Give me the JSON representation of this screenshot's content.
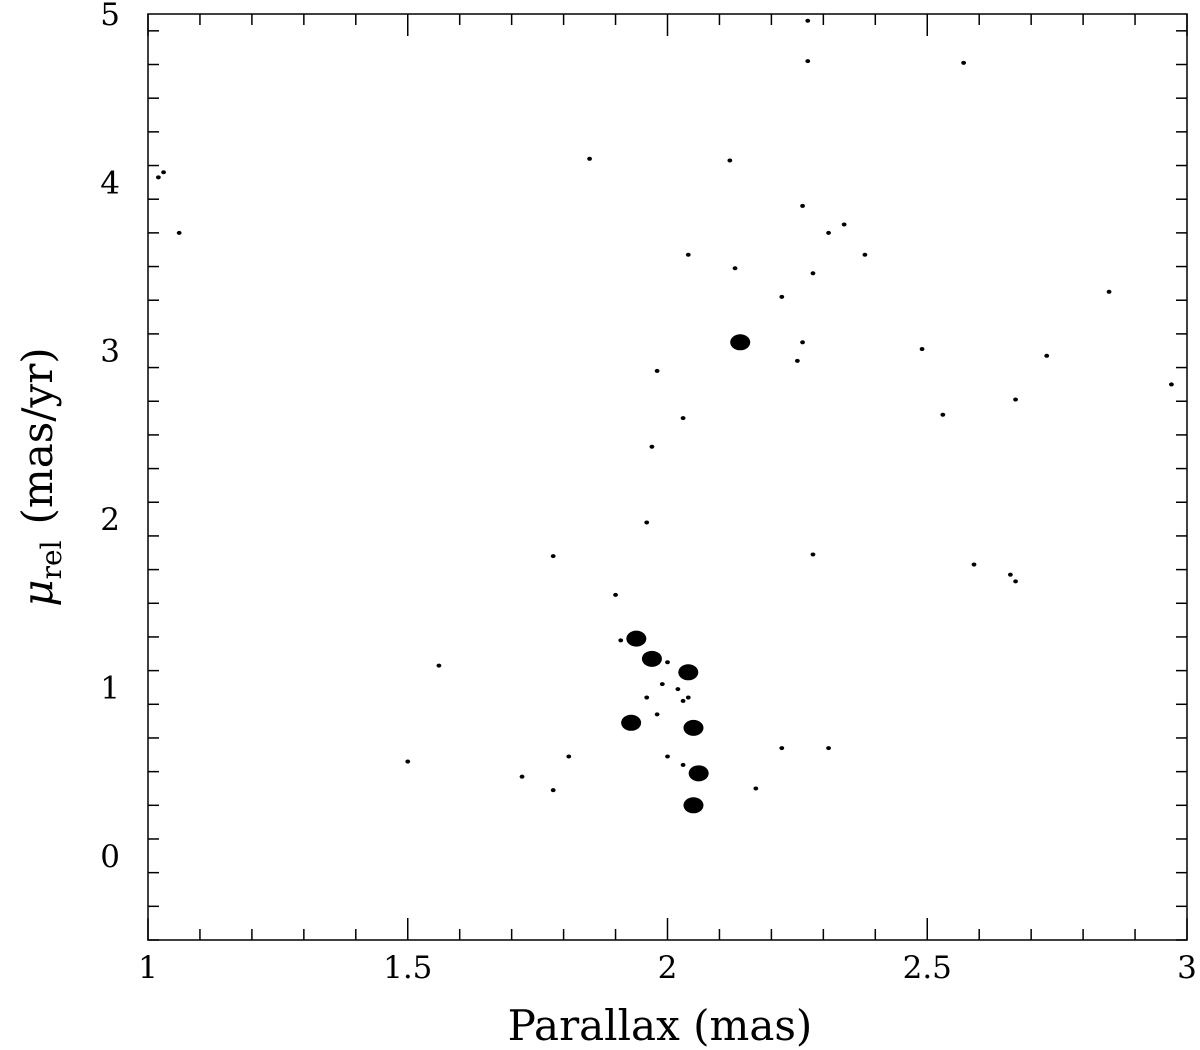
{
  "chart_data": {
    "type": "scatter",
    "title": "",
    "xlabel": "Parallax (mas)",
    "ylabel": {
      "symbol": "μ",
      "subscript": "rel",
      "units": "(mas/yr)"
    },
    "xlim": [
      1,
      3
    ],
    "ylim": [
      -0.5,
      5
    ],
    "x_major_ticks": [
      1,
      1.5,
      2,
      2.5,
      3
    ],
    "x_tick_labels": [
      "1",
      "1.5",
      "2",
      "2.5",
      "3"
    ],
    "y_major_ticks": [
      0,
      1,
      2,
      3,
      4,
      5
    ],
    "y_tick_labels": [
      "0",
      "1",
      "2",
      "3",
      "4",
      "5"
    ],
    "x_minor_step": 0.1,
    "y_minor_step": 0.2,
    "grid": false,
    "legend": "none",
    "series": [
      {
        "marker": "small-dot",
        "x": [
          1.03,
          1.02,
          1.06,
          1.5,
          1.56,
          1.72,
          1.78,
          1.78,
          1.81,
          1.85,
          1.9,
          1.91,
          1.96,
          1.96,
          1.97,
          1.98,
          1.98,
          1.99,
          2.0,
          2.0,
          2.02,
          2.03,
          2.03,
          2.03,
          2.04,
          2.04,
          2.12,
          2.13,
          2.17,
          2.22,
          2.22,
          2.25,
          2.26,
          2.26,
          2.27,
          2.27,
          2.28,
          2.28,
          2.31,
          2.31,
          2.34,
          2.38,
          2.49,
          2.53,
          2.57,
          2.59,
          2.66,
          2.67,
          2.67,
          2.73,
          2.85,
          2.97
        ],
        "y": [
          4.06,
          4.03,
          3.7,
          0.56,
          1.13,
          0.47,
          0.39,
          1.78,
          0.59,
          4.14,
          1.55,
          1.28,
          0.94,
          1.98,
          2.43,
          2.88,
          0.84,
          1.02,
          0.59,
          1.15,
          0.99,
          0.54,
          2.6,
          0.92,
          3.57,
          0.94,
          4.13,
          3.49,
          0.4,
          0.64,
          3.32,
          2.94,
          3.86,
          3.05,
          4.96,
          4.72,
          3.46,
          1.79,
          3.7,
          0.64,
          3.75,
          3.57,
          3.01,
          2.62,
          4.71,
          1.73,
          1.67,
          1.63,
          2.71,
          2.97,
          3.35,
          2.8
        ]
      },
      {
        "marker": "large-dot",
        "x": [
          2.14,
          1.94,
          1.97,
          2.04,
          1.93,
          2.05,
          2.06,
          2.05
        ],
        "y": [
          3.05,
          1.29,
          1.17,
          1.09,
          0.79,
          0.76,
          0.49,
          0.3
        ]
      }
    ]
  }
}
